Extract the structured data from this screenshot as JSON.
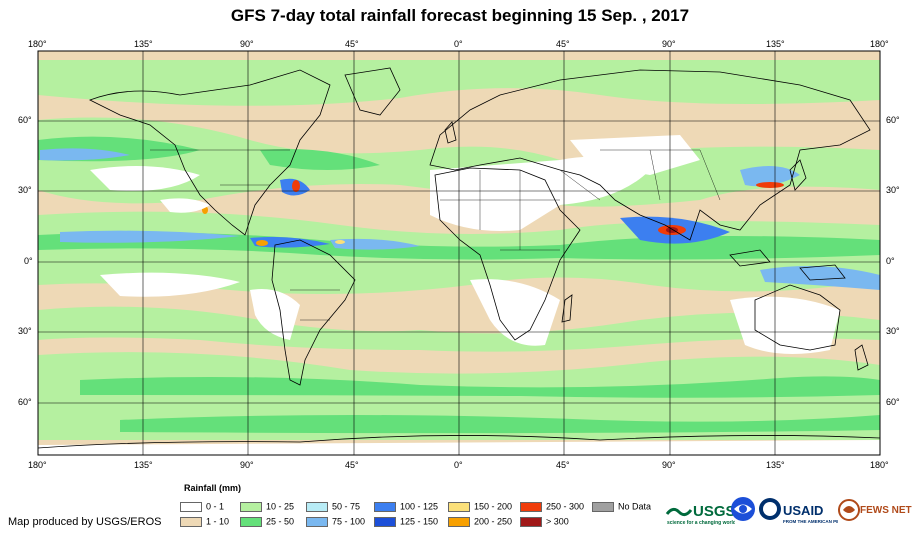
{
  "title": "GFS 7-day total rainfall forecast beginning 15 Sep. , 2017",
  "top_lon_labels": [
    "180°",
    "135°",
    "90°",
    "45°",
    "0°",
    "45°",
    "90°",
    "135°",
    "180°"
  ],
  "bottom_lon_labels": [
    "180°",
    "135°",
    "90°",
    "45°",
    "0°",
    "45°",
    "90°",
    "135°",
    "180°"
  ],
  "left_lat_labels": [
    "60°",
    "30°",
    "0°",
    "30°",
    "60°"
  ],
  "right_lat_labels": [
    "60°",
    "30°",
    "0°",
    "30°",
    "60°"
  ],
  "legend": {
    "title": "Rainfall (mm)",
    "items": [
      {
        "label": "0 - 1",
        "color": "#ffffff"
      },
      {
        "label": "1 - 10",
        "color": "#eed9b6"
      },
      {
        "label": "10 - 25",
        "color": "#b5f0a0"
      },
      {
        "label": "25 - 50",
        "color": "#64e07a"
      },
      {
        "label": "50 - 75",
        "color": "#b8ecf6"
      },
      {
        "label": "75 - 100",
        "color": "#7ab8f0"
      },
      {
        "label": "100 - 125",
        "color": "#3c7ff0"
      },
      {
        "label": "125 - 150",
        "color": "#1c4fd8"
      },
      {
        "label": "150 - 200",
        "color": "#fbe07a"
      },
      {
        "label": "200 - 250",
        "color": "#f7a000"
      },
      {
        "label": "250 - 300",
        "color": "#f03c0a"
      },
      {
        "label": "> 300",
        "color": "#a01818"
      },
      {
        "label": "No Data",
        "color": "#a0a0a0"
      }
    ]
  },
  "credit": "Map produced by USGS/EROS",
  "logos": {
    "usgs": "USGS",
    "usgs_tagline": "science for a changing world",
    "usaid": "USAID",
    "usaid_tagline": "FROM THE AMERICAN PEOPLE",
    "fews": "FEWS NET"
  },
  "colors": {
    "grid": "#000000",
    "coast": "#000000"
  }
}
